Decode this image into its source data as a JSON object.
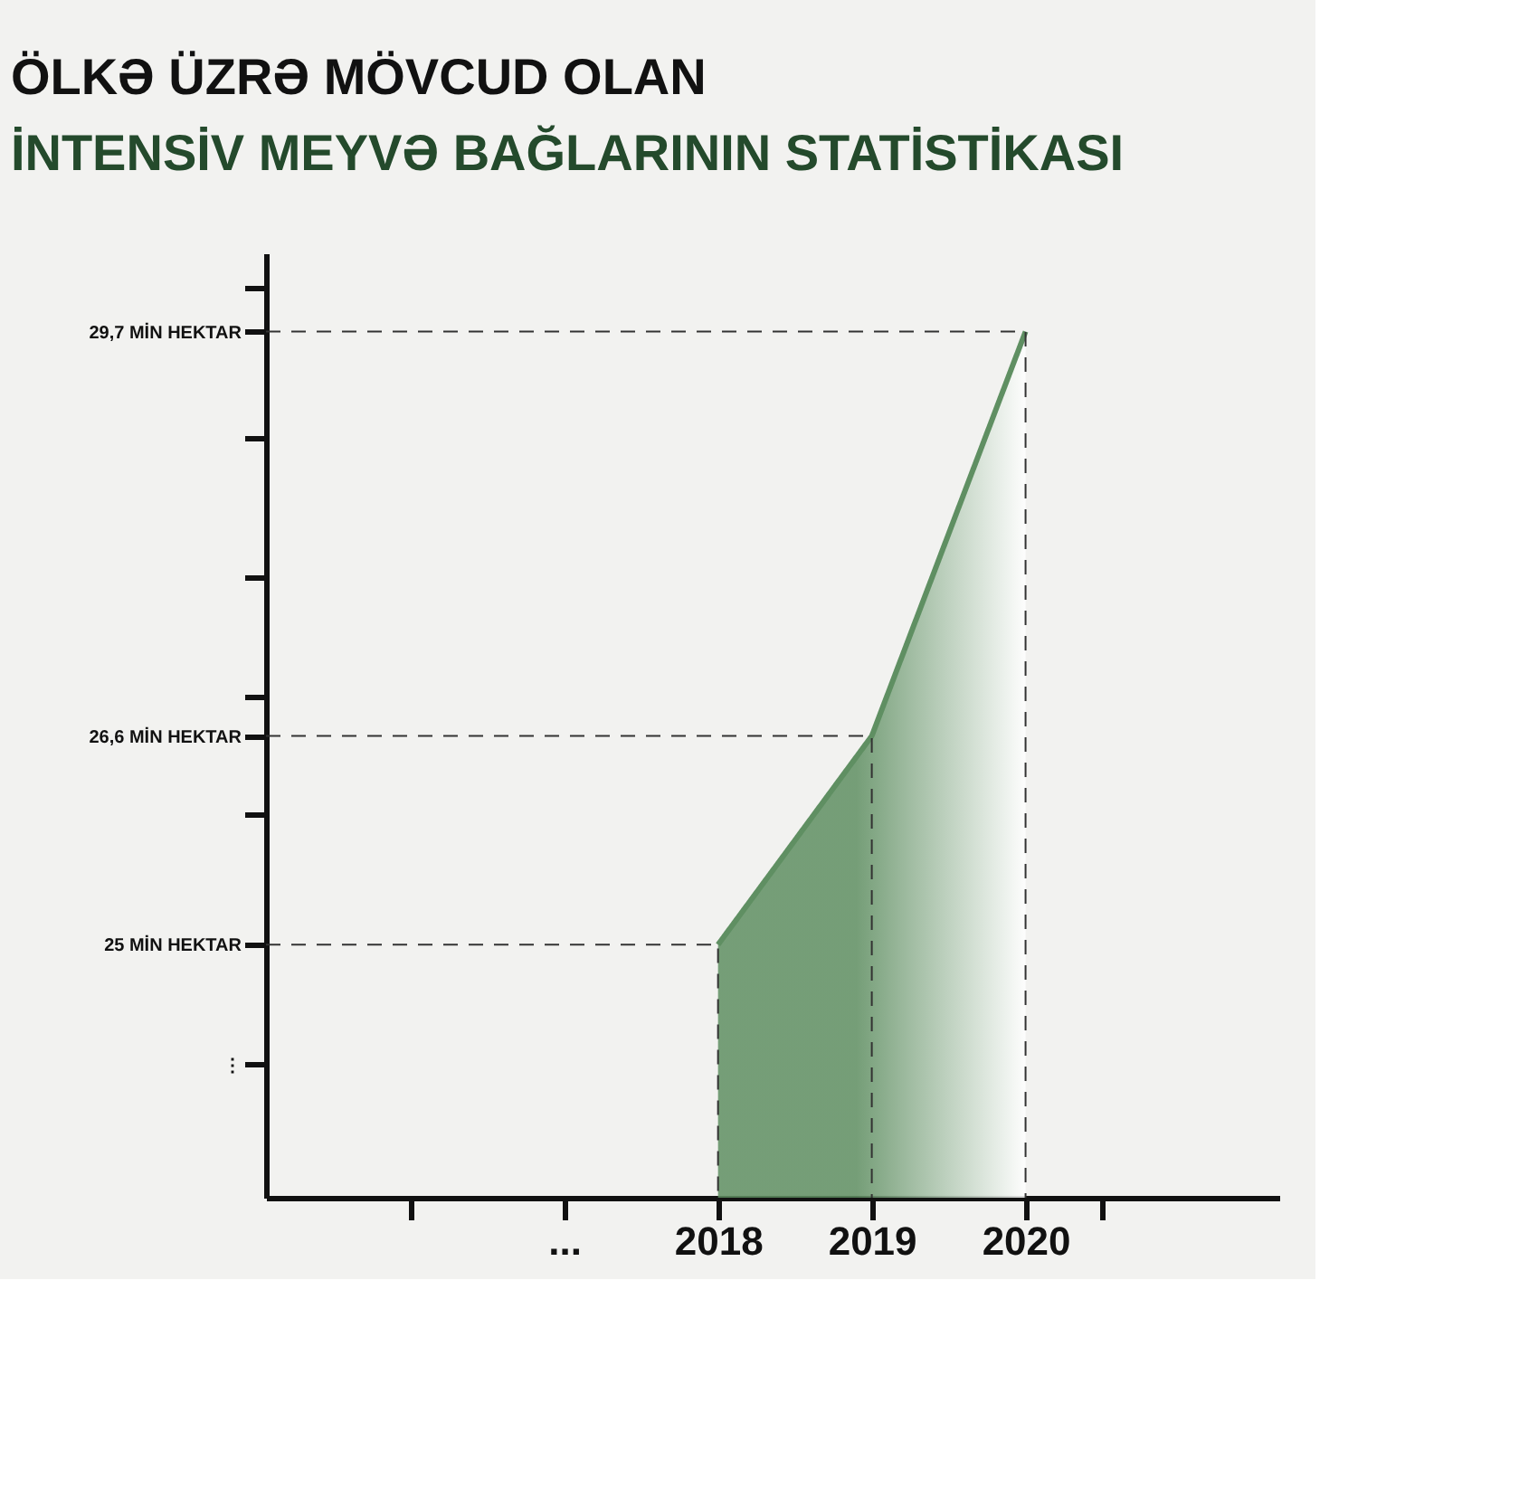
{
  "chart_data": {
    "type": "area",
    "title": "ÖLKƏ ÜZRƏ MÖVCUD OLAN",
    "subtitle": "İNTENSİV MEYVƏ BAĞLARININ STATİSTİKASI",
    "x": [
      2018,
      2019,
      2020
    ],
    "series": [
      {
        "color": "#5f8f62",
        "values": [
          25,
          26.6,
          29.7
        ]
      },
      {
        "type": "line",
        "line_style": "dashed",
        "color": "#333333",
        "x": [
          2015.06,
          2018,
          2018
        ],
        "values": [
          25,
          25,
          23.06
        ]
      },
      {
        "type": "line",
        "line_style": "dashed",
        "color": "#333333",
        "x": [
          2015.06,
          2019,
          2019
        ],
        "values": [
          26.6,
          26.6,
          23.06
        ]
      },
      {
        "type": "line",
        "line_style": "dashed",
        "color": "#333333",
        "x": [
          2015.06,
          2020,
          2020
        ],
        "values": [
          29.7,
          29.7,
          23.06
        ]
      }
    ],
    "xlim": [
      2015.06,
      2021.65
    ],
    "xticks": [
      {
        "value": 2016,
        "label": null
      },
      {
        "value": 2017,
        "label": "..."
      },
      2018,
      2019,
      2020,
      {
        "value": 2020.5,
        "label": null
      }
    ],
    "ylim": [
      23.06,
      30.3
    ],
    "yticks": [
      {
        "value": 24.08,
        "label": "⋮"
      },
      {
        "value": 25,
        "label": "25 MİN HEKTAR"
      },
      {
        "value": 26.0,
        "label": null
      },
      {
        "value": 26.6,
        "label": "26,6 MİN  HEKTAR"
      },
      {
        "value": 26.9,
        "label": null
      },
      {
        "value": 27.82,
        "label": null
      },
      {
        "value": 28.88,
        "label": null
      },
      {
        "value": 29.7,
        "label": "29,7 MİN HEKTAR"
      },
      {
        "value": 30.04,
        "label": null
      }
    ]
  }
}
